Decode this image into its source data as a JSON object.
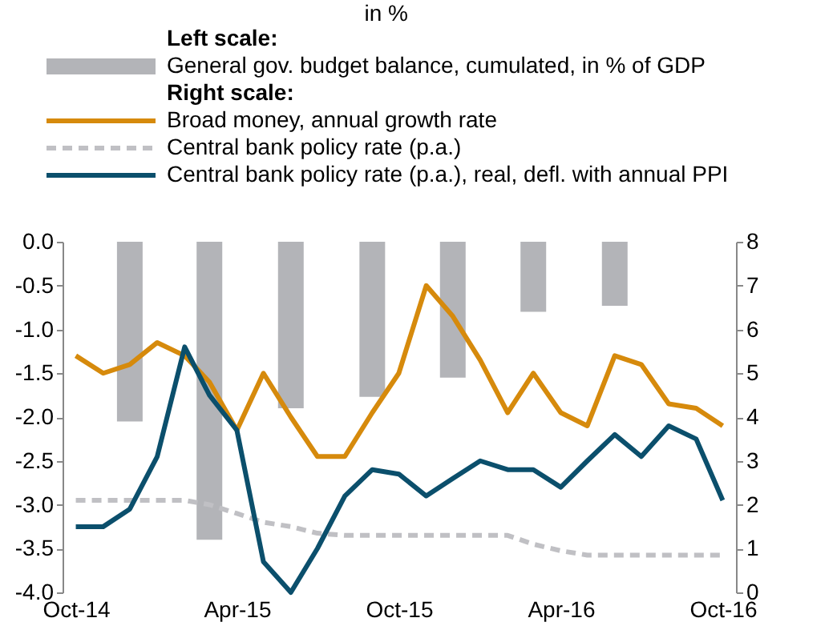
{
  "chart_data": {
    "type": "bar",
    "title": "in %",
    "annotations": [
      "Left scale:",
      "Right scale:"
    ],
    "legend": "top",
    "marker": "none",
    "grid": false,
    "x": [
      "2014-10",
      "2014-11",
      "2014-12",
      "2015-01",
      "2015-02",
      "2015-03",
      "2015-04",
      "2015-05",
      "2015-06",
      "2015-07",
      "2015-08",
      "2015-09",
      "2015-10",
      "2015-11",
      "2015-12",
      "2016-01",
      "2016-02",
      "2016-03",
      "2016-04",
      "2016-05",
      "2016-06",
      "2016-07",
      "2016-08",
      "2016-09",
      "2016-10"
    ],
    "xlim": [
      "2014-09-16",
      "2016-10-16"
    ],
    "xticks": [
      {
        "value": "2014-10",
        "label": "Oct-14"
      },
      {
        "value": "2015-04",
        "label": "Apr-15"
      },
      {
        "value": "2015-10",
        "label": "Oct-15"
      },
      {
        "value": "2016-04",
        "label": "Apr-16"
      },
      {
        "value": "2016-10",
        "label": "Oct-16"
      }
    ],
    "ylim": [
      -4,
      0
    ],
    "yticks": [
      {
        "value": 0,
        "label": "0.0"
      },
      {
        "value": -0.5,
        "label": "-0.5"
      },
      {
        "value": -1,
        "label": "-1.0"
      },
      {
        "value": -1.5,
        "label": "-1.5"
      },
      {
        "value": -2,
        "label": "-2.0"
      },
      {
        "value": -2.5,
        "label": "-2.5"
      },
      {
        "value": -3,
        "label": "-3.0"
      },
      {
        "value": -3.5,
        "label": "-3.5"
      },
      {
        "value": -4,
        "label": "-4.0"
      }
    ],
    "y2lim": [
      0,
      8
    ],
    "y2ticks": [
      0,
      1,
      2,
      3,
      4,
      5,
      6,
      7,
      8
    ],
    "series": [
      {
        "name": "General gov. budget balance, cumulated, in % of GDP",
        "type": "bar",
        "color": "#b3b4b8",
        "x": [
          "2014-12",
          "2015-03",
          "2015-06",
          "2015-09",
          "2015-12",
          "2016-03",
          "2016-06"
        ],
        "values": [
          -2.05,
          -3.4,
          -1.9,
          -1.77,
          -1.55,
          -0.8,
          -0.73
        ]
      },
      {
        "name": "Broad money, annual growth rate",
        "type": "line",
        "axis": "y2",
        "color": "#d68a0c",
        "line_style": "solid",
        "values": [
          5.4,
          5.0,
          5.2,
          5.7,
          5.4,
          4.8,
          3.7,
          5.0,
          4.0,
          3.1,
          3.1,
          4.1,
          5.0,
          7.0,
          6.3,
          5.3,
          4.1,
          5.0,
          4.1,
          3.8,
          5.4,
          5.2,
          4.3,
          4.2,
          3.8
        ]
      },
      {
        "name": "Central bank policy rate (p.a.)",
        "type": "line",
        "axis": "y2",
        "color": "#c0c0c4",
        "line_style": "dashed",
        "values": [
          2.1,
          2.1,
          2.1,
          2.1,
          2.1,
          2.0,
          1.8,
          1.6,
          1.5,
          1.35,
          1.3,
          1.3,
          1.3,
          1.3,
          1.3,
          1.3,
          1.3,
          1.1,
          0.95,
          0.85,
          0.85,
          0.85,
          0.85,
          0.85,
          0.85
        ]
      },
      {
        "name": "Central bank policy rate (p.a.), real, defl. with annual PPI",
        "type": "line",
        "axis": "y2",
        "color": "#0b4f6c",
        "line_style": "solid",
        "values": [
          1.5,
          1.5,
          1.9,
          3.1,
          5.6,
          4.5,
          3.7,
          0.7,
          0.0,
          1.0,
          2.2,
          2.8,
          2.7,
          2.2,
          2.6,
          3.0,
          2.8,
          2.8,
          2.4,
          3.0,
          3.6,
          3.1,
          3.8,
          3.5,
          2.1
        ]
      }
    ]
  }
}
